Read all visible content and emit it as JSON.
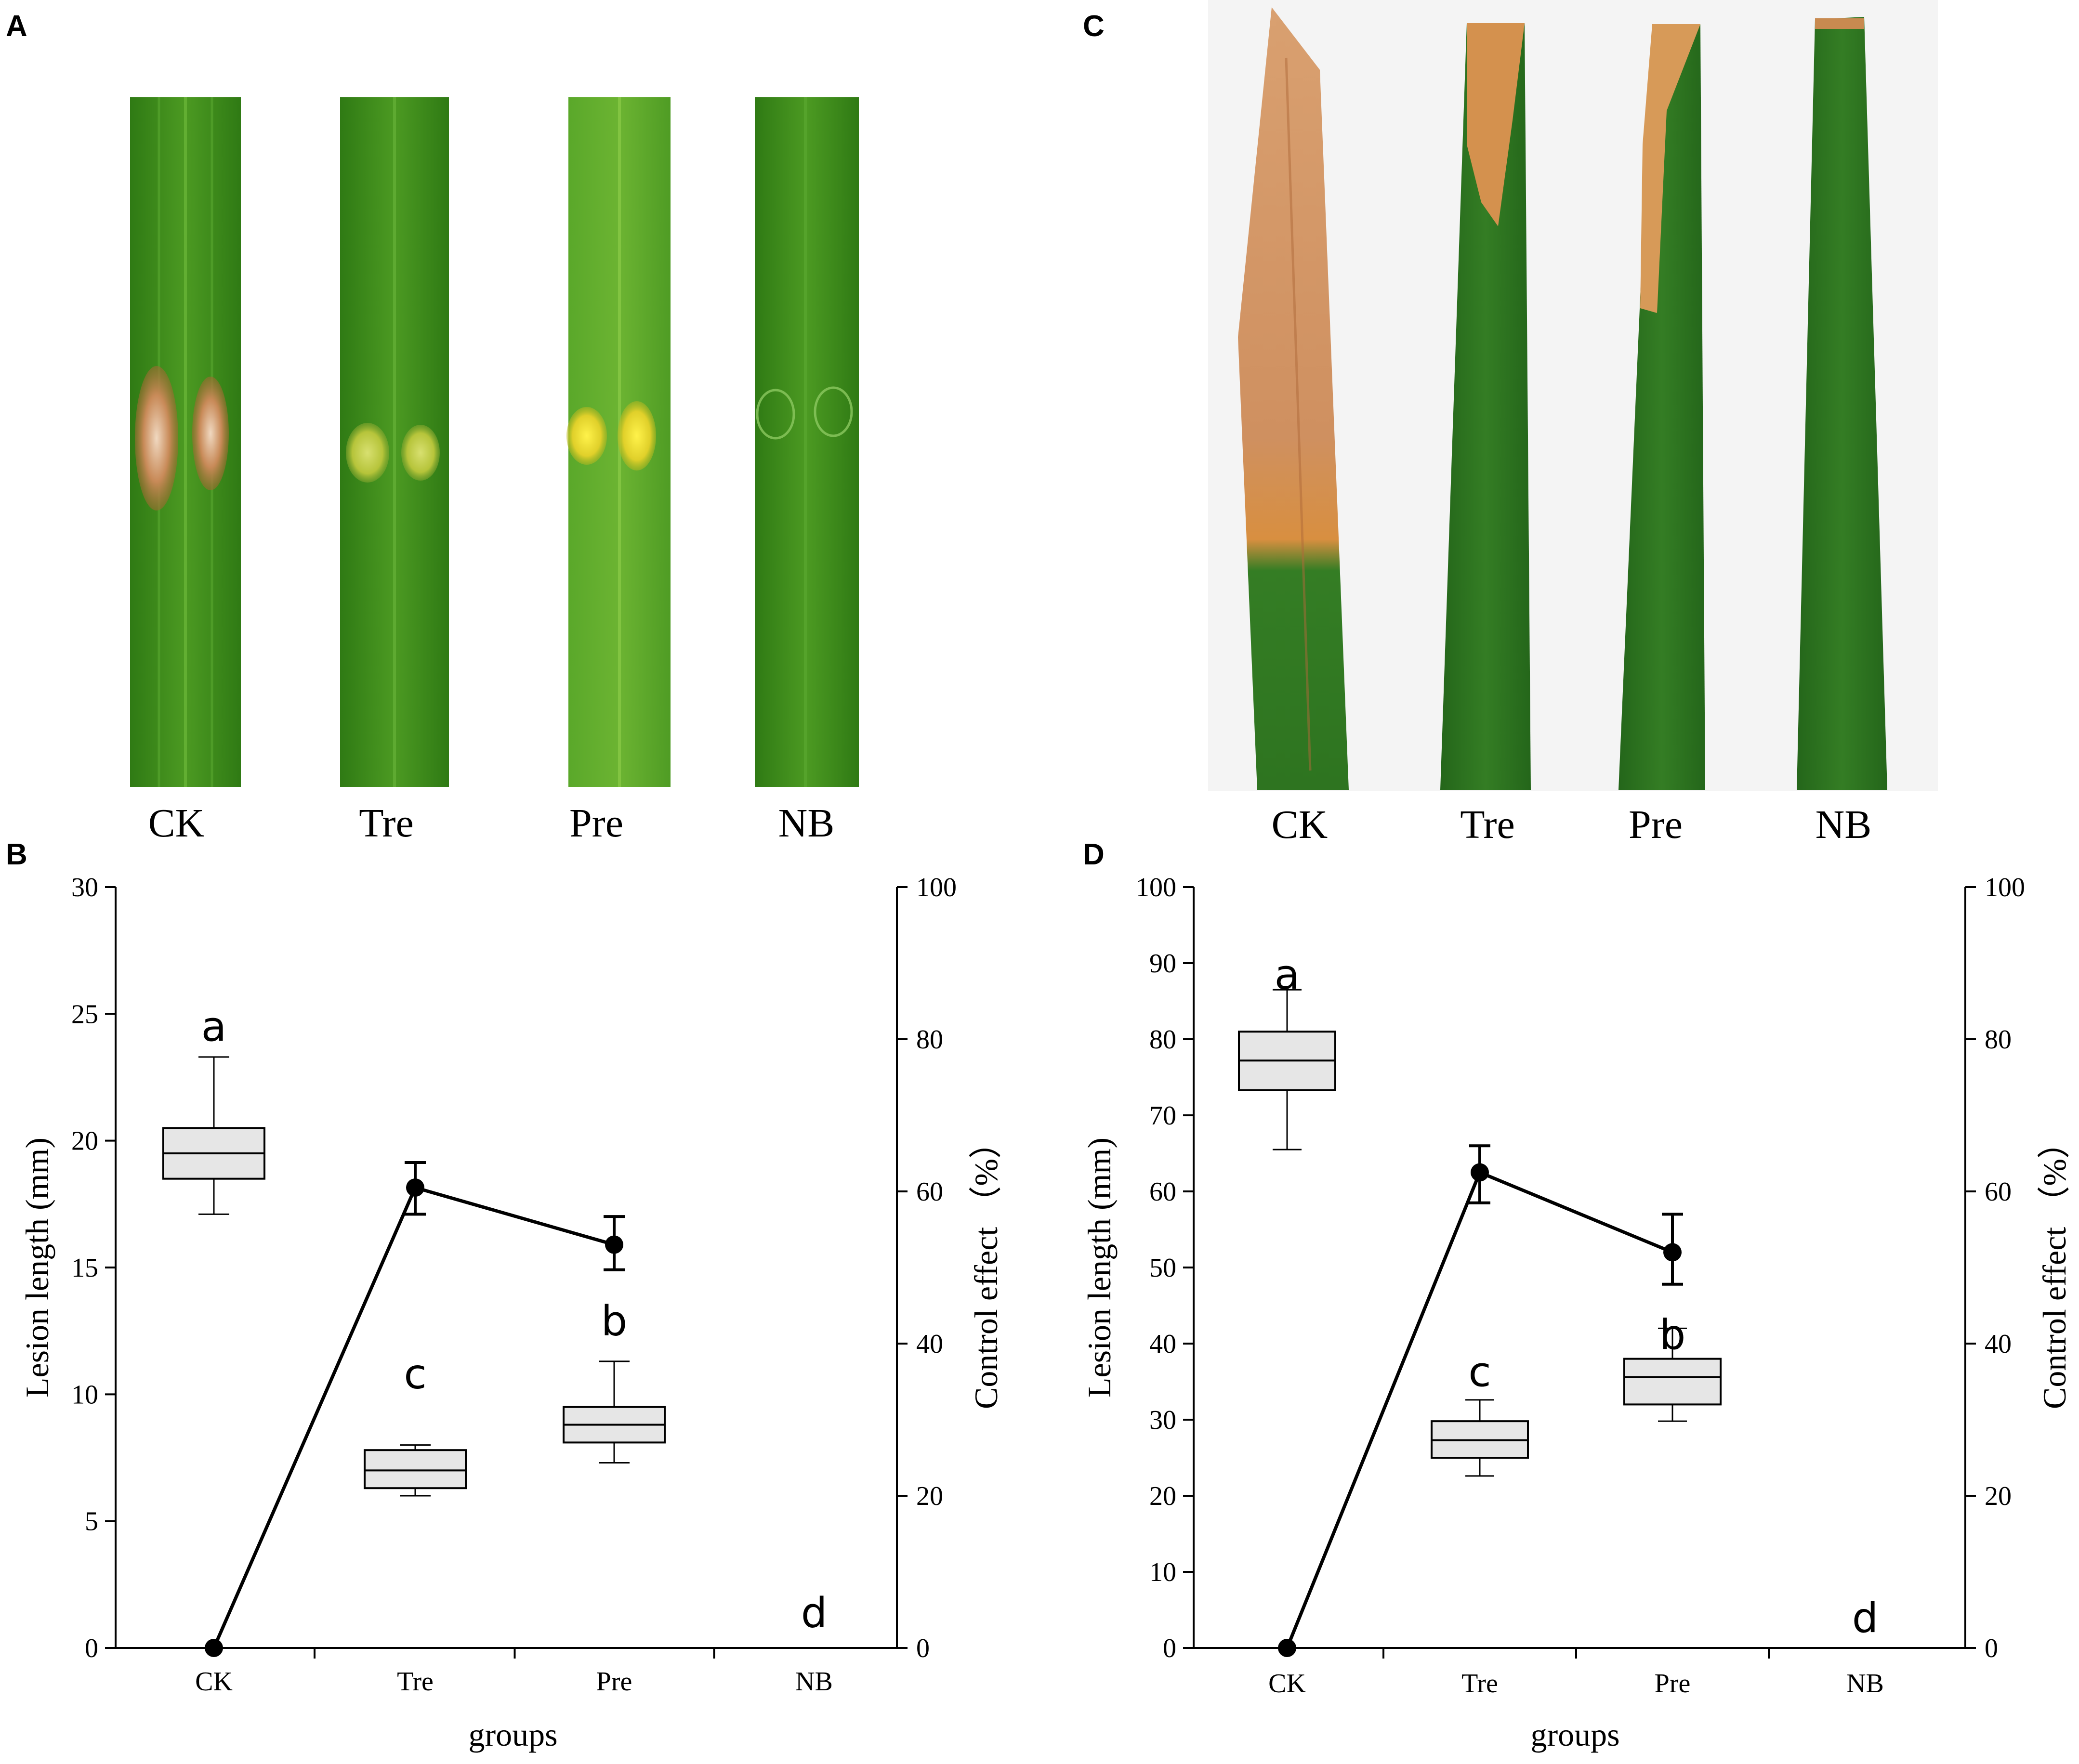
{
  "panel_letters": {
    "a": "A",
    "b": "B",
    "c": "C",
    "d": "D"
  },
  "photo_labels": [
    "CK",
    "Tre",
    "Pre",
    "NB"
  ],
  "colors": {
    "leaf_green": "#3f8f1f",
    "leaf_dark": "#2a6e14",
    "lesion_tan": "#c8905a",
    "lesion_yellow": "#e4e030",
    "blight_orange": "#d49a5a",
    "box_fill": "#e6e6e6"
  },
  "chart_data": [
    {
      "panel": "B",
      "type": "box",
      "categories": [
        "CK",
        "Tre",
        "Pre",
        "NB"
      ],
      "xlabel": "groups",
      "ylabel": "Lesion length (mm)",
      "y2label": "Control effect （%）",
      "ylim": [
        0,
        30
      ],
      "yticks": [
        0,
        5,
        10,
        15,
        20,
        25,
        30
      ],
      "y2lim": [
        0,
        100
      ],
      "y2ticks": [
        0,
        20,
        40,
        60,
        80,
        100
      ],
      "boxes": [
        {
          "min": 17.1,
          "q1": 18.5,
          "median": 19.5,
          "q3": 20.5,
          "max": 23.3
        },
        {
          "min": 6.0,
          "q1": 6.3,
          "median": 7.0,
          "q3": 7.8,
          "max": 8.0
        },
        {
          "min": 7.3,
          "q1": 8.1,
          "median": 8.8,
          "q3": 9.5,
          "max": 11.3
        },
        {
          "min": 0,
          "q1": 0,
          "median": 0,
          "q3": 0,
          "max": 0
        }
      ],
      "significance": [
        "a",
        "c",
        "b",
        "d"
      ],
      "significance_y": [
        24.5,
        10.8,
        12.9,
        1.4
      ],
      "control_effect": {
        "categories": [
          "CK",
          "Tre",
          "Pre"
        ],
        "values": [
          0,
          60.5,
          53.0
        ],
        "err_low": [
          0,
          3.5,
          3.3
        ],
        "err_high": [
          0,
          3.3,
          3.7
        ]
      }
    },
    {
      "panel": "D",
      "type": "box",
      "categories": [
        "CK",
        "Tre",
        "Pre",
        "NB"
      ],
      "xlabel": "groups",
      "ylabel": "Lesion length (mm)",
      "y2label": "Control effect （%）",
      "ylim": [
        0,
        100
      ],
      "yticks": [
        0,
        10,
        20,
        30,
        40,
        50,
        60,
        70,
        80,
        90,
        100
      ],
      "y2lim": [
        0,
        100
      ],
      "y2ticks": [
        0,
        20,
        40,
        60,
        80,
        100
      ],
      "boxes": [
        {
          "min": 65.5,
          "q1": 73.3,
          "median": 77.2,
          "q3": 81.0,
          "max": 86.5
        },
        {
          "min": 22.6,
          "q1": 25.0,
          "median": 27.3,
          "q3": 29.8,
          "max": 32.6
        },
        {
          "min": 29.8,
          "q1": 32.0,
          "median": 35.6,
          "q3": 38.0,
          "max": 42.0
        },
        {
          "min": 0,
          "q1": 0,
          "median": 0,
          "q3": 0,
          "max": 0
        }
      ],
      "significance": [
        "a",
        "c",
        "b",
        "d"
      ],
      "significance_y": [
        88.5,
        36.3,
        41.2,
        4.0
      ],
      "control_effect": {
        "categories": [
          "CK",
          "Tre",
          "Pre"
        ],
        "values": [
          0,
          62.5,
          52.0
        ],
        "err_low": [
          0,
          4.0,
          4.2
        ],
        "err_high": [
          0,
          3.5,
          5.0
        ]
      }
    }
  ]
}
